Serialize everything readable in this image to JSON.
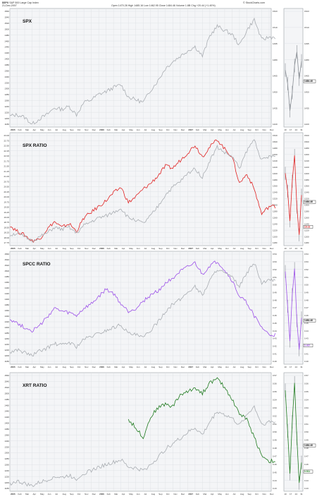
{
  "header": {
    "symbol": "$SPX",
    "name": "S&P 500 Large Cap Index",
    "date": "21-Dec-2007",
    "quote": "Open 1470.28  High 1485.16  Low 1462.95  Close 1484.46  Volume 1.8B  Chg +20.44 (+1.40%)",
    "brand": "© StockCharts.com"
  },
  "chart_data": [
    {
      "type": "line",
      "title": "SPX",
      "x": [
        "2005",
        "Feb",
        "Mar",
        "Apr",
        "May",
        "Jun",
        "Jul",
        "Aug",
        "Sep",
        "Oct",
        "Nov",
        "Dec",
        "2006",
        "Feb",
        "Mar",
        "Apr",
        "May",
        "Jun",
        "Jul",
        "Aug",
        "Sep",
        "Oct",
        "Nov",
        "Dec",
        "2007",
        "Feb",
        "Mar",
        "Apr",
        "May",
        "Jun",
        "Jul",
        "Aug",
        "Sep",
        "Oct",
        "Nov",
        "Dec"
      ],
      "series": [
        {
          "values": [
            1190,
            1195,
            1185,
            1160,
            1180,
            1195,
            1220,
            1215,
            1225,
            1195,
            1240,
            1250,
            1270,
            1280,
            1295,
            1305,
            1260,
            1250,
            1240,
            1285,
            1320,
            1365,
            1390,
            1410,
            1430,
            1445,
            1410,
            1485,
            1520,
            1505,
            1490,
            1450,
            1505,
            1545,
            1470,
            1480
          ],
          "color": "#a9adb2"
        }
      ],
      "y_ticks": [
        "1560",
        "1540",
        "1520",
        "1500",
        "1480",
        "1460",
        "1440",
        "1420",
        "1400",
        "1380",
        "1360",
        "1340",
        "1320",
        "1300",
        "1280",
        "1260",
        "1240",
        "1220",
        "1200",
        "1180"
      ],
      "ylim": [
        1160,
        1575
      ],
      "inset_ticks": [
        "1523",
        "1510",
        "1495",
        "1480",
        "1465",
        "1450",
        "1435",
        "1420"
      ],
      "inset_values": [
        1470,
        1455,
        1425,
        1445,
        1475,
        1490,
        1460,
        1480
      ],
      "inset_range": [
        1410,
        1535
      ],
      "inset_xlabels": [
        "10",
        "17",
        "24",
        "31"
      ],
      "last_value": "1484.46"
    },
    {
      "type": "line",
      "title": "SPX RATIO",
      "x": [
        "2005",
        "Feb",
        "Mar",
        "Apr",
        "May",
        "Jun",
        "Jul",
        "Aug",
        "Sep",
        "Oct",
        "Nov",
        "Dec",
        "2006",
        "Feb",
        "Mar",
        "Apr",
        "May",
        "Jun",
        "Jul",
        "Aug",
        "Sep",
        "Oct",
        "Nov",
        "Dec",
        "2007",
        "Feb",
        "Mar",
        "Apr",
        "May",
        "Jun",
        "Jul",
        "Aug",
        "Sep",
        "Oct",
        "Nov",
        "Dec"
      ],
      "series": [
        {
          "values": [
            18.4,
            18.1,
            17.9,
            17.6,
            17.7,
            18.2,
            18.6,
            18.3,
            18.5,
            18.1,
            18.8,
            19.1,
            19.4,
            19.7,
            20.1,
            20.4,
            19.6,
            19.9,
            20.3,
            20.6,
            21.0,
            21.5,
            21.4,
            21.8,
            22.2,
            22.6,
            22.0,
            22.5,
            22.9,
            22.4,
            22.0,
            20.6,
            21.1,
            20.3,
            19.0,
            19.4
          ],
          "color": "#e02020"
        },
        {
          "values": [
            17.9,
            18.0,
            17.8,
            17.6,
            17.8,
            18.0,
            18.3,
            18.2,
            18.3,
            18.0,
            18.4,
            18.6,
            18.8,
            18.9,
            19.1,
            19.3,
            18.8,
            18.7,
            18.5,
            18.9,
            19.4,
            20.0,
            20.4,
            20.7,
            21.1,
            21.4,
            20.9,
            21.8,
            22.5,
            22.2,
            22.0,
            21.4,
            22.3,
            22.9,
            21.8,
            22.0
          ],
          "color": "#a9adb2"
        }
      ],
      "y_ticks": [
        "23.00",
        "22.75",
        "22.50",
        "22.25",
        "22.00",
        "21.75",
        "21.50",
        "21.25",
        "21.00",
        "20.75",
        "20.50",
        "20.25",
        "20.00",
        "19.75",
        "19.50",
        "19.25",
        "19.00",
        "18.75",
        "18.50",
        "18.25",
        "18.00",
        "17.75"
      ],
      "ylim": [
        17.5,
        23.1
      ],
      "right_ticks": [
        "1520",
        "1500",
        "1480",
        "1460",
        "1440",
        "1420",
        "1400",
        "1380",
        "1360",
        "1340",
        "1320",
        "1300",
        "1280",
        "1260",
        "1240",
        "1220",
        "1200",
        "1180"
      ],
      "inset_values": [
        20.3,
        19.4,
        17.9,
        19.9,
        21.2,
        18.6,
        17.2,
        19.2
      ],
      "inset_range": [
        16.8,
        22.2
      ],
      "inset_xlabels": [
        "10",
        "17",
        "24",
        "31"
      ],
      "last_value": "1484.46",
      "last_ratio": "19.13"
    },
    {
      "type": "line",
      "title": "SPCC RATIO",
      "x": [
        "2005",
        "Feb",
        "Mar",
        "Apr",
        "May",
        "Jun",
        "Jul",
        "Aug",
        "Sep",
        "Oct",
        "Nov",
        "Dec",
        "2006",
        "Feb",
        "Mar",
        "Apr",
        "May",
        "Jun",
        "Jul",
        "Aug",
        "Sep",
        "Oct",
        "Nov",
        "Dec",
        "2007",
        "Feb",
        "Mar",
        "Apr",
        "May",
        "Jun",
        "Jul",
        "Aug",
        "Sep",
        "Oct",
        "Nov",
        "Dec"
      ],
      "series": [
        {
          "values": [
            0.502,
            0.499,
            0.496,
            0.494,
            0.497,
            0.503,
            0.509,
            0.507,
            0.506,
            0.504,
            0.509,
            0.512,
            0.517,
            0.522,
            0.519,
            0.512,
            0.507,
            0.509,
            0.514,
            0.518,
            0.521,
            0.526,
            0.53,
            0.534,
            0.537,
            0.54,
            0.532,
            0.538,
            0.541,
            0.535,
            0.528,
            0.517,
            0.513,
            0.504,
            0.496,
            0.491
          ],
          "color": "#9b4fe8"
        },
        {
          "values": [
            0.479,
            0.481,
            0.479,
            0.477,
            0.48,
            0.482,
            0.485,
            0.484,
            0.486,
            0.483,
            0.488,
            0.49,
            0.492,
            0.494,
            0.496,
            0.498,
            0.492,
            0.491,
            0.489,
            0.494,
            0.5,
            0.507,
            0.512,
            0.515,
            0.52,
            0.524,
            0.518,
            0.528,
            0.536,
            0.533,
            0.53,
            0.524,
            0.533,
            0.54,
            0.526,
            0.528
          ],
          "color": "#a9adb2"
        }
      ],
      "y_ticks": [
        "1560",
        "1540",
        "1520",
        "1500",
        "1480",
        "1460",
        "1440",
        "1420",
        "1400",
        "1380",
        "1360",
        "1340",
        "1320",
        "1300",
        "1280",
        "1260",
        "1240",
        "1220",
        "1200",
        "1180"
      ],
      "ylim": [
        0.473,
        0.546
      ],
      "right_ticks": [
        "0.54",
        "0.53",
        "0.52",
        "0.51",
        "0.50",
        "0.49",
        "0.48",
        "0.47",
        "0.46",
        "0.45",
        "0.44",
        "0.43",
        "0.42",
        "0.41",
        "0.40"
      ],
      "inset_values": [
        0.511,
        0.499,
        0.487,
        0.503,
        0.512,
        0.494,
        0.484,
        0.495
      ],
      "inset_range": [
        0.48,
        0.517
      ],
      "inset_xlabels": [
        "10",
        "17",
        "24",
        "31"
      ],
      "last_value": "1484.46",
      "last_ratio": "0.467"
    },
    {
      "type": "line",
      "title": "XRT RATIO",
      "x": [
        "2005",
        "Feb",
        "Mar",
        "Apr",
        "May",
        "Jun",
        "Jul",
        "Aug",
        "Sep",
        "Oct",
        "Nov",
        "Dec",
        "2006",
        "Feb",
        "Mar",
        "Apr",
        "May",
        "Jun",
        "Jul",
        "Aug",
        "Sep",
        "Oct",
        "Nov",
        "Dec",
        "2007",
        "Feb",
        "Mar",
        "Apr",
        "May",
        "Jun",
        "Jul",
        "Aug",
        "Sep",
        "Oct",
        "Nov",
        "Dec"
      ],
      "series": [
        {
          "values": [
            null,
            null,
            null,
            null,
            null,
            null,
            null,
            null,
            null,
            null,
            null,
            null,
            null,
            null,
            null,
            null,
            0.535,
            0.528,
            0.52,
            0.537,
            0.545,
            0.548,
            0.546,
            0.556,
            0.558,
            0.562,
            0.557,
            0.566,
            0.569,
            0.562,
            0.552,
            0.54,
            0.535,
            0.52,
            0.505,
            0.5
          ],
          "color": "#1e7a1e"
        },
        {
          "values": [
            0.481,
            0.483,
            0.481,
            0.479,
            0.482,
            0.484,
            0.487,
            0.486,
            0.488,
            0.485,
            0.49,
            0.492,
            0.495,
            0.497,
            0.499,
            0.501,
            0.495,
            0.494,
            0.492,
            0.497,
            0.503,
            0.51,
            0.515,
            0.519,
            0.524,
            0.528,
            0.522,
            0.533,
            0.542,
            0.539,
            0.536,
            0.53,
            0.539,
            0.546,
            0.531,
            0.533
          ],
          "color": "#a9adb2"
        }
      ],
      "y_ticks": [
        "1560",
        "1540",
        "1520",
        "1500",
        "1480",
        "1460",
        "1440",
        "1420",
        "1400",
        "1380",
        "1360",
        "1340",
        "1320",
        "1300",
        "1280",
        "1260",
        "1240",
        "1220",
        "1200",
        "1180"
      ],
      "ylim": [
        0.477,
        0.572
      ],
      "right_ticks": [
        "0.57",
        "0.56",
        "0.55",
        "0.54",
        "0.53",
        "0.52",
        "0.51",
        "0.50",
        "0.49",
        "0.48",
        "0.47",
        "0.46",
        "0.45",
        "0.44",
        "0.43"
      ],
      "inset_values": [
        0.548,
        0.526,
        0.503,
        0.531,
        0.552,
        0.522,
        0.498,
        0.509
      ],
      "inset_range": [
        0.495,
        0.556
      ],
      "inset_xlabels": [
        "10",
        "17",
        "24",
        "31"
      ],
      "last_value": "1484.46",
      "last_ratio": "0.511"
    }
  ]
}
